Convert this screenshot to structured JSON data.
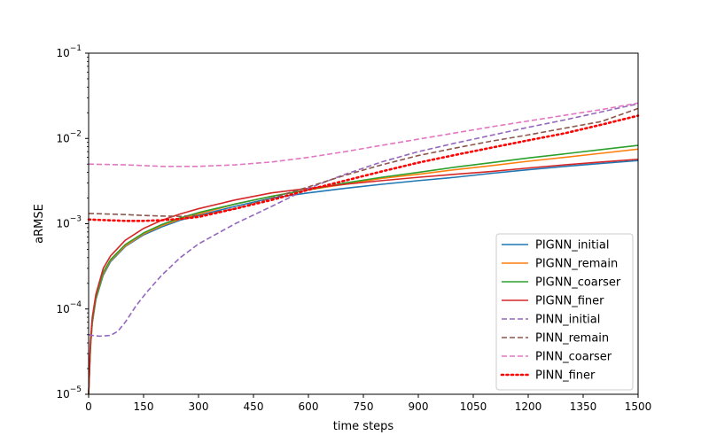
{
  "chart_data": {
    "type": "line",
    "title": "",
    "xlabel": "time steps",
    "ylabel": "aRMSE",
    "xlim": [
      0,
      1500
    ],
    "ylim": [
      1e-05,
      0.1
    ],
    "yscale": "log",
    "x_ticks": [
      0,
      150,
      300,
      450,
      600,
      750,
      900,
      1050,
      1200,
      1350,
      1500
    ],
    "y_ticks": [
      {
        "value": 1e-05,
        "base": "10",
        "exp": "−5"
      },
      {
        "value": 0.0001,
        "base": "10",
        "exp": "−4"
      },
      {
        "value": 0.001,
        "base": "10",
        "exp": "−3"
      },
      {
        "value": 0.01,
        "base": "10",
        "exp": "−2"
      },
      {
        "value": 0.1,
        "base": "10",
        "exp": "−1"
      }
    ],
    "grid": false,
    "legend_position": "lower-right",
    "series": [
      {
        "name": "PIGNN_initial",
        "color": "#1f77b4",
        "style": "solid",
        "x": [
          0,
          5,
          10,
          20,
          40,
          60,
          100,
          150,
          200,
          250,
          300,
          400,
          500,
          600,
          700,
          800,
          900,
          1000,
          1100,
          1200,
          1300,
          1400,
          1500
        ],
        "y": [
          1e-05,
          3.5e-05,
          6.8e-05,
          0.00013,
          0.00025,
          0.00036,
          0.00054,
          0.00074,
          0.00092,
          0.0011,
          0.00125,
          0.0016,
          0.002,
          0.0023,
          0.0026,
          0.0029,
          0.0032,
          0.0035,
          0.0039,
          0.0043,
          0.0047,
          0.0051,
          0.0055
        ]
      },
      {
        "name": "PIGNN_remain",
        "color": "#ff7f0e",
        "style": "solid",
        "x": [
          0,
          5,
          10,
          20,
          40,
          60,
          100,
          150,
          200,
          250,
          300,
          400,
          500,
          600,
          700,
          800,
          900,
          1000,
          1100,
          1200,
          1300,
          1400,
          1500
        ],
        "y": [
          1e-05,
          3.6e-05,
          7e-05,
          0.000133,
          0.00026,
          0.00037,
          0.00055,
          0.00076,
          0.00095,
          0.00113,
          0.0013,
          0.0017,
          0.0021,
          0.0025,
          0.0029,
          0.0034,
          0.0038,
          0.0043,
          0.0048,
          0.0054,
          0.006,
          0.0067,
          0.0075
        ]
      },
      {
        "name": "PIGNN_coarser",
        "color": "#2ca02c",
        "style": "solid",
        "x": [
          0,
          5,
          10,
          20,
          40,
          60,
          100,
          150,
          200,
          250,
          300,
          400,
          500,
          600,
          700,
          800,
          900,
          1000,
          1100,
          1200,
          1300,
          1400,
          1500
        ],
        "y": [
          1e-05,
          3.7e-05,
          7.2e-05,
          0.000136,
          0.00027,
          0.00038,
          0.00057,
          0.00078,
          0.00098,
          0.00117,
          0.00135,
          0.0017,
          0.0021,
          0.0025,
          0.003,
          0.0035,
          0.004,
          0.0046,
          0.0052,
          0.0059,
          0.0066,
          0.0074,
          0.0083
        ]
      },
      {
        "name": "PIGNN_finer",
        "color": "#d62728",
        "style": "solid",
        "x": [
          0,
          5,
          10,
          20,
          40,
          60,
          100,
          150,
          200,
          250,
          300,
          400,
          500,
          600,
          700,
          800,
          900,
          1000,
          1100,
          1200,
          1300,
          1400,
          1500
        ],
        "y": [
          1e-05,
          4.2e-05,
          8e-05,
          0.00015,
          0.0003,
          0.00042,
          0.00064,
          0.00088,
          0.0011,
          0.0013,
          0.0015,
          0.0019,
          0.0023,
          0.0026,
          0.0029,
          0.0032,
          0.0035,
          0.0038,
          0.0041,
          0.0045,
          0.0049,
          0.0053,
          0.0057
        ]
      },
      {
        "name": "PINN_initial",
        "color": "#9467bd",
        "style": "dashed",
        "x": [
          0,
          10,
          30,
          60,
          80,
          100,
          130,
          160,
          200,
          250,
          300,
          400,
          500,
          600,
          700,
          800,
          900,
          1000,
          1100,
          1200,
          1300,
          1400,
          1500
        ],
        "y": [
          5e-05,
          4.9e-05,
          4.8e-05,
          4.9e-05,
          5.5e-05,
          7e-05,
          0.00011,
          0.00016,
          0.00025,
          0.0004,
          0.00058,
          0.001,
          0.0016,
          0.0026,
          0.0038,
          0.0053,
          0.007,
          0.0088,
          0.0109,
          0.0135,
          0.0165,
          0.0205,
          0.0255
        ]
      },
      {
        "name": "PINN_remain",
        "color": "#8c564b",
        "style": "dashed",
        "x": [
          0,
          50,
          100,
          150,
          200,
          250,
          300,
          400,
          500,
          600,
          700,
          800,
          900,
          1000,
          1100,
          1200,
          1300,
          1400,
          1500
        ],
        "y": [
          0.00132,
          0.0013,
          0.00128,
          0.00125,
          0.00123,
          0.00122,
          0.00125,
          0.0015,
          0.002,
          0.0027,
          0.0037,
          0.0049,
          0.0063,
          0.0077,
          0.0093,
          0.011,
          0.0132,
          0.0158,
          0.0225
        ]
      },
      {
        "name": "PINN_coarser",
        "color": "#e377c2",
        "style": "dashed",
        "x": [
          0,
          100,
          200,
          300,
          400,
          500,
          600,
          700,
          800,
          900,
          1000,
          1100,
          1200,
          1300,
          1400,
          1500
        ],
        "y": [
          0.005,
          0.0049,
          0.0047,
          0.0047,
          0.0049,
          0.0053,
          0.006,
          0.007,
          0.0083,
          0.0098,
          0.0116,
          0.0137,
          0.016,
          0.0187,
          0.0218,
          0.026
        ]
      },
      {
        "name": "PINN_finer",
        "color": "#ff0000",
        "style": "dotted",
        "x": [
          0,
          50,
          100,
          150,
          200,
          250,
          300,
          400,
          500,
          600,
          700,
          800,
          900,
          1000,
          1100,
          1200,
          1300,
          1400,
          1500
        ],
        "y": [
          0.00112,
          0.0011,
          0.00108,
          0.00108,
          0.0011,
          0.00114,
          0.0012,
          0.0015,
          0.0019,
          0.0025,
          0.0032,
          0.0041,
          0.0052,
          0.0064,
          0.0078,
          0.0095,
          0.0115,
          0.0145,
          0.0185
        ]
      }
    ]
  }
}
